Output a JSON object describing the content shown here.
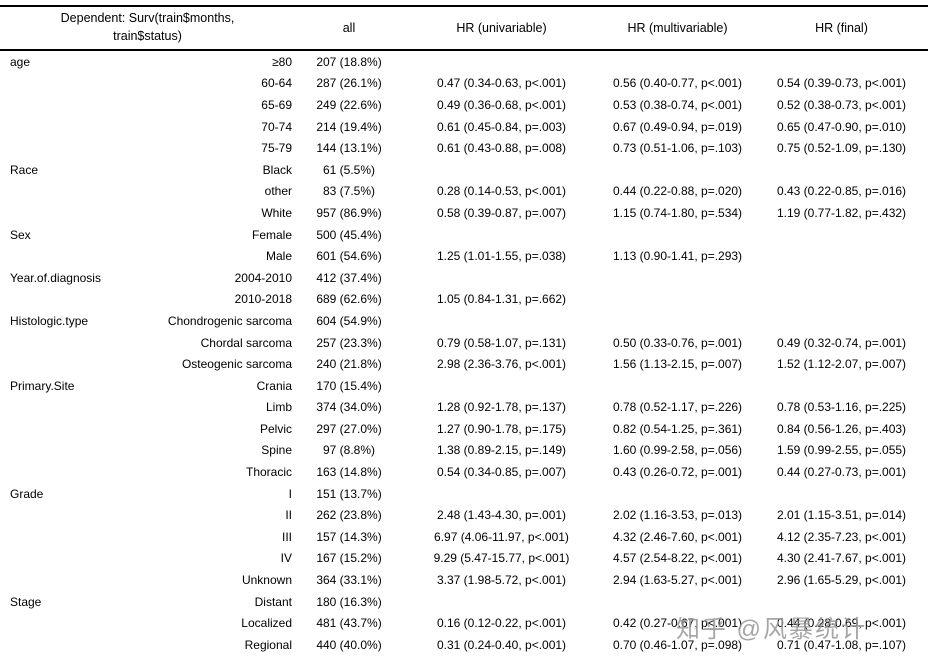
{
  "header": {
    "dependent": "Dependent: Surv(train$months,\ntrain$status)",
    "columns": [
      "all",
      "HR (univariable)",
      "HR (multivariable)",
      "HR (final)"
    ]
  },
  "rows": [
    {
      "variable": "age",
      "level": "≥80",
      "all": "207 (18.8%)",
      "hr_uni": "",
      "hr_multi": "",
      "hr_final": ""
    },
    {
      "variable": "",
      "level": "60-64",
      "all": "287 (26.1%)",
      "hr_uni": "0.47 (0.34-0.63, p<.001)",
      "hr_multi": "0.56 (0.40-0.77, p<.001)",
      "hr_final": "0.54 (0.39-0.73, p<.001)"
    },
    {
      "variable": "",
      "level": "65-69",
      "all": "249 (22.6%)",
      "hr_uni": "0.49 (0.36-0.68, p<.001)",
      "hr_multi": "0.53 (0.38-0.74, p<.001)",
      "hr_final": "0.52 (0.38-0.73, p<.001)"
    },
    {
      "variable": "",
      "level": "70-74",
      "all": "214 (19.4%)",
      "hr_uni": "0.61 (0.45-0.84, p=.003)",
      "hr_multi": "0.67 (0.49-0.94, p=.019)",
      "hr_final": "0.65 (0.47-0.90, p=.010)"
    },
    {
      "variable": "",
      "level": "75-79",
      "all": "144 (13.1%)",
      "hr_uni": "0.61 (0.43-0.88, p=.008)",
      "hr_multi": "0.73 (0.51-1.06, p=.103)",
      "hr_final": "0.75 (0.52-1.09, p=.130)"
    },
    {
      "variable": "Race",
      "level": "Black",
      "all": "61 (5.5%)",
      "hr_uni": "",
      "hr_multi": "",
      "hr_final": ""
    },
    {
      "variable": "",
      "level": "other",
      "all": "83 (7.5%)",
      "hr_uni": "0.28 (0.14-0.53, p<.001)",
      "hr_multi": "0.44 (0.22-0.88, p=.020)",
      "hr_final": "0.43 (0.22-0.85, p=.016)"
    },
    {
      "variable": "",
      "level": "White",
      "all": "957 (86.9%)",
      "hr_uni": "0.58 (0.39-0.87, p=.007)",
      "hr_multi": "1.15 (0.74-1.80, p=.534)",
      "hr_final": "1.19 (0.77-1.82, p=.432)"
    },
    {
      "variable": "Sex",
      "level": "Female",
      "all": "500 (45.4%)",
      "hr_uni": "",
      "hr_multi": "",
      "hr_final": ""
    },
    {
      "variable": "",
      "level": "Male",
      "all": "601 (54.6%)",
      "hr_uni": "1.25 (1.01-1.55, p=.038)",
      "hr_multi": "1.13 (0.90-1.41, p=.293)",
      "hr_final": ""
    },
    {
      "variable": "Year.of.diagnosis",
      "level": "2004-2010",
      "all": "412 (37.4%)",
      "hr_uni": "",
      "hr_multi": "",
      "hr_final": ""
    },
    {
      "variable": "",
      "level": "2010-2018",
      "all": "689 (62.6%)",
      "hr_uni": "1.05 (0.84-1.31, p=.662)",
      "hr_multi": "",
      "hr_final": ""
    },
    {
      "variable": "Histologic.type",
      "level": "Chondrogenic sarcoma",
      "all": "604 (54.9%)",
      "hr_uni": "",
      "hr_multi": "",
      "hr_final": ""
    },
    {
      "variable": "",
      "level": "Chordal sarcoma",
      "all": "257 (23.3%)",
      "hr_uni": "0.79 (0.58-1.07, p=.131)",
      "hr_multi": "0.50 (0.33-0.76, p=.001)",
      "hr_final": "0.49 (0.32-0.74, p=.001)"
    },
    {
      "variable": "",
      "level": "Osteogenic sarcoma",
      "all": "240 (21.8%)",
      "hr_uni": "2.98 (2.36-3.76, p<.001)",
      "hr_multi": "1.56 (1.13-2.15, p=.007)",
      "hr_final": "1.52 (1.12-2.07, p=.007)"
    },
    {
      "variable": "Primary.Site",
      "level": "Crania",
      "all": "170 (15.4%)",
      "hr_uni": "",
      "hr_multi": "",
      "hr_final": ""
    },
    {
      "variable": "",
      "level": "Limb",
      "all": "374 (34.0%)",
      "hr_uni": "1.28 (0.92-1.78, p=.137)",
      "hr_multi": "0.78 (0.52-1.17, p=.226)",
      "hr_final": "0.78 (0.53-1.16, p=.225)"
    },
    {
      "variable": "",
      "level": "Pelvic",
      "all": "297 (27.0%)",
      "hr_uni": "1.27 (0.90-1.78, p=.175)",
      "hr_multi": "0.82 (0.54-1.25, p=.361)",
      "hr_final": "0.84 (0.56-1.26, p=.403)"
    },
    {
      "variable": "",
      "level": "Spine",
      "all": "97 (8.8%)",
      "hr_uni": "1.38 (0.89-2.15, p=.149)",
      "hr_multi": "1.60 (0.99-2.58, p=.056)",
      "hr_final": "1.59 (0.99-2.55, p=.055)"
    },
    {
      "variable": "",
      "level": "Thoracic",
      "all": "163 (14.8%)",
      "hr_uni": "0.54 (0.34-0.85, p=.007)",
      "hr_multi": "0.43 (0.26-0.72, p=.001)",
      "hr_final": "0.44 (0.27-0.73, p=.001)"
    },
    {
      "variable": "Grade",
      "level": "I",
      "all": "151 (13.7%)",
      "hr_uni": "",
      "hr_multi": "",
      "hr_final": ""
    },
    {
      "variable": "",
      "level": "II",
      "all": "262 (23.8%)",
      "hr_uni": "2.48 (1.43-4.30, p=.001)",
      "hr_multi": "2.02 (1.16-3.53, p=.013)",
      "hr_final": "2.01 (1.15-3.51, p=.014)"
    },
    {
      "variable": "",
      "level": "III",
      "all": "157 (14.3%)",
      "hr_uni": "6.97 (4.06-11.97, p<.001)",
      "hr_multi": "4.32 (2.46-7.60, p<.001)",
      "hr_final": "4.12 (2.35-7.23, p<.001)"
    },
    {
      "variable": "",
      "level": "IV",
      "all": "167 (15.2%)",
      "hr_uni": "9.29 (5.47-15.77, p<.001)",
      "hr_multi": "4.57 (2.54-8.22, p<.001)",
      "hr_final": "4.30 (2.41-7.67, p<.001)"
    },
    {
      "variable": "",
      "level": "Unknown",
      "all": "364 (33.1%)",
      "hr_uni": "3.37 (1.98-5.72, p<.001)",
      "hr_multi": "2.94 (1.63-5.27, p<.001)",
      "hr_final": "2.96 (1.65-5.29, p<.001)"
    },
    {
      "variable": "Stage",
      "level": "Distant",
      "all": "180 (16.3%)",
      "hr_uni": "",
      "hr_multi": "",
      "hr_final": ""
    },
    {
      "variable": "",
      "level": "Localized",
      "all": "481 (43.7%)",
      "hr_uni": "0.16 (0.12-0.22, p<.001)",
      "hr_multi": "0.42 (0.27-0.67, p<.001)",
      "hr_final": "0.44 (0.28-0.69, p<.001)"
    },
    {
      "variable": "",
      "level": "Regional",
      "all": "440 (40.0%)",
      "hr_uni": "0.31 (0.24-0.40, p<.001)",
      "hr_multi": "0.70 (0.46-1.07, p=.098)",
      "hr_final": "0.71 (0.47-1.08, p=.107)"
    }
  ],
  "watermark": "知乎 @风暴统计"
}
